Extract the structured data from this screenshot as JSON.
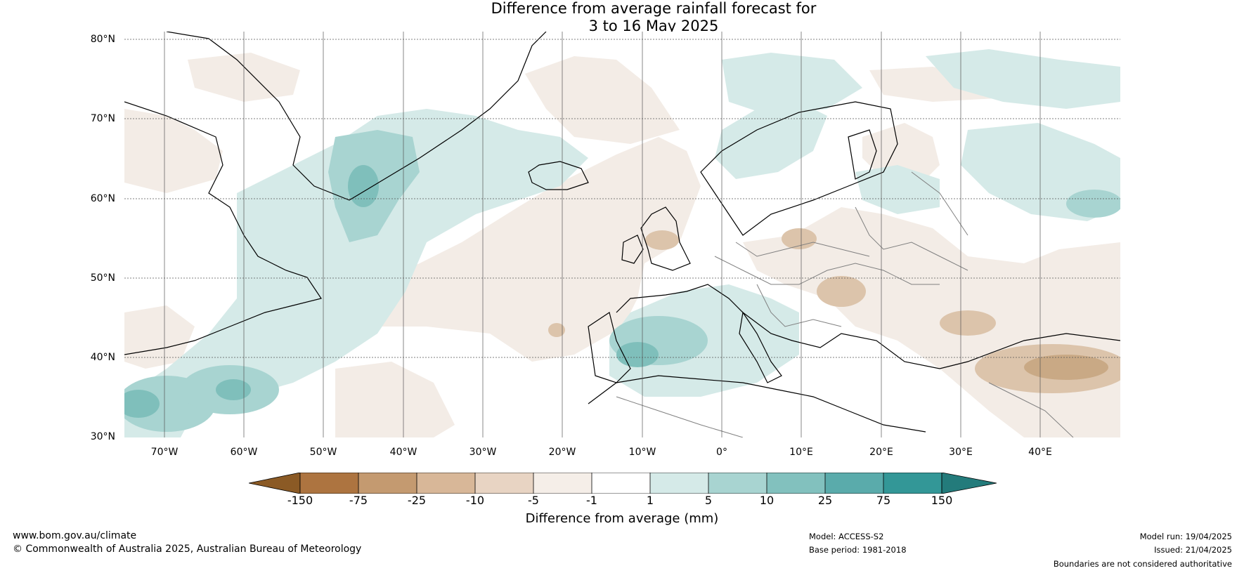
{
  "title": {
    "line1": "Difference from average rainfall forecast for",
    "line2": "3 to 16 May 2025"
  },
  "map": {
    "lat_labels": [
      "80°N",
      "70°N",
      "60°N",
      "50°N",
      "40°N",
      "30°N"
    ],
    "lon_labels": [
      "70°W",
      "60°W",
      "50°W",
      "40°W",
      "30°W",
      "20°W",
      "10°W",
      "0°",
      "10°E",
      "20°E",
      "30°E",
      "40°E"
    ],
    "extent": {
      "lon": [
        -75,
        50
      ],
      "lat": [
        30,
        81
      ]
    },
    "colors": {
      "dry_strong": "#c9a985",
      "dry_mid": "#dcc4ab",
      "dry_light": "#f3ece6",
      "neutral": "#ffffff",
      "wet_light": "#d5eae8",
      "wet_mid": "#a8d4d1",
      "wet_strong": "#7fbfbb",
      "coast": "#000000",
      "border": "#808080"
    }
  },
  "colorbar": {
    "ticks": [
      "-150",
      "-75",
      "-25",
      "-10",
      "-5",
      "-1",
      "1",
      "5",
      "10",
      "25",
      "75",
      "150"
    ],
    "colors": [
      "#8b5a25",
      "#ad7440",
      "#c49a70",
      "#d8b798",
      "#e8d4c3",
      "#f5eee8",
      "#ffffff",
      "#d5eae8",
      "#a8d4d1",
      "#82c1be",
      "#5aabab",
      "#339797",
      "#237b7b"
    ],
    "label": "Difference from average (mm)"
  },
  "footer": {
    "url": "www.bom.gov.au/climate",
    "copyright": "© Commonwealth of Australia 2025, Australian Bureau of Meteorology",
    "model": "Model: ACCESS-S2",
    "base_period": "Base period: 1981-2018",
    "model_run": "Model run: 19/04/2025",
    "issued": "Issued: 21/04/2025",
    "disclaimer": "Boundaries are not considered authoritative"
  }
}
